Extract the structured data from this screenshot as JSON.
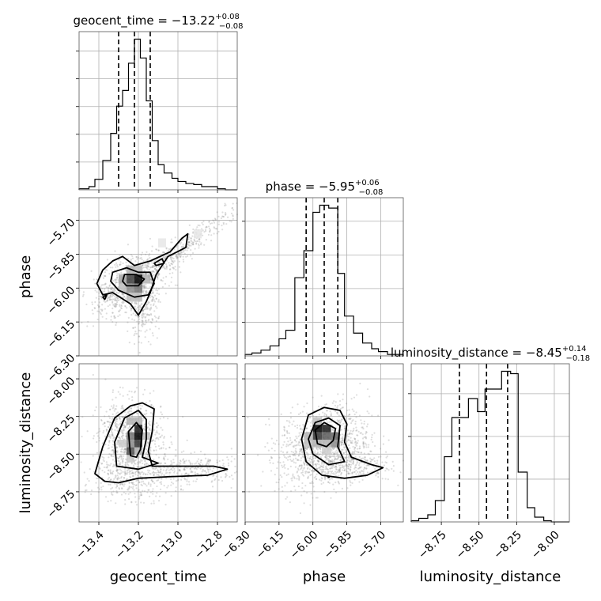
{
  "chart_data": {
    "type": "corner",
    "parameters": [
      {
        "name": "geocent_time",
        "label": "geocent_time",
        "title_prefix": "geocent_time = ",
        "median": "−13.22",
        "plus": "+0.08",
        "minus": "−0.08",
        "quantiles": [
          -13.3,
          -13.22,
          -13.14
        ],
        "range": [
          -13.5,
          -12.7
        ],
        "ticks": [
          -13.4,
          -13.2,
          -13.0,
          -12.8
        ],
        "tick_labels": [
          "−13.4",
          "−13.2",
          "−13.0",
          "−12.8"
        ],
        "hist": {
          "edges": [
            -13.5,
            -13.45,
            -13.42,
            -13.38,
            -13.34,
            -13.31,
            -13.28,
            -13.25,
            -13.22,
            -13.19,
            -13.16,
            -13.13,
            -13.1,
            -13.07,
            -13.03,
            -13.0,
            -12.96,
            -12.92,
            -12.88,
            -12.84,
            -12.8,
            -12.76,
            -12.7
          ],
          "counts": [
            1,
            3,
            10,
            28,
            54,
            80,
            95,
            121,
            144,
            126,
            85,
            47,
            24,
            16,
            11,
            8,
            6,
            5,
            3,
            3,
            1,
            0
          ]
        }
      },
      {
        "name": "phase",
        "label": "phase",
        "title_prefix": "phase = ",
        "median": "−5.95",
        "plus": "+0.06",
        "minus": "−0.08",
        "quantiles": [
          -6.03,
          -5.95,
          -5.89
        ],
        "range": [
          -6.3,
          -5.6
        ],
        "ticks": [
          -6.3,
          -6.15,
          -6.0,
          -5.85,
          -5.7
        ],
        "tick_labels": [
          "−6.30",
          "−6.15",
          "−6.00",
          "−5.85",
          "−5.70"
        ],
        "hist": {
          "edges": [
            -6.3,
            -6.27,
            -6.23,
            -6.19,
            -6.15,
            -6.12,
            -6.08,
            -6.04,
            -6.0,
            -5.97,
            -5.93,
            -5.89,
            -5.86,
            -5.82,
            -5.78,
            -5.74,
            -5.71,
            -5.67,
            -5.63,
            -5.6
          ],
          "counts": [
            1,
            2,
            4,
            7,
            12,
            18,
            55,
            74,
            101,
            106,
            104,
            58,
            28,
            16,
            9,
            5,
            3,
            1,
            1
          ]
        }
      },
      {
        "name": "luminosity_distance",
        "label": "luminosity_distance",
        "title_prefix": "luminosity_distance = ",
        "median": "−8.45",
        "plus": "+0.14",
        "minus": "−0.18",
        "quantiles": [
          -8.63,
          -8.45,
          -8.31
        ],
        "range": [
          -8.95,
          -7.9
        ],
        "ticks": [
          -8.75,
          -8.5,
          -8.25,
          -8.0
        ],
        "tick_labels": [
          "−8.75",
          "−8.50",
          "−8.25",
          "−8.00"
        ],
        "hist": {
          "edges": [
            -8.95,
            -8.9,
            -8.84,
            -8.79,
            -8.73,
            -8.68,
            -8.62,
            -8.57,
            -8.51,
            -8.46,
            -8.4,
            -8.35,
            -8.29,
            -8.24,
            -8.18,
            -8.13,
            -8.07,
            -8.02,
            -7.96,
            -7.9
          ],
          "counts": [
            1,
            3,
            6,
            18,
            55,
            88,
            88,
            104,
            93,
            112,
            112,
            127,
            125,
            42,
            12,
            4,
            1,
            0,
            0
          ]
        }
      }
    ],
    "pairs": [
      {
        "x": "geocent_time",
        "y": "phase",
        "cloud": [
          {
            "cx": -13.22,
            "cy": -5.97,
            "sx": 0.08,
            "sy": 0.06,
            "rho": 0.3,
            "n": 600
          },
          {
            "cx": -13.18,
            "cy": -6.12,
            "sx": 0.04,
            "sy": 0.05,
            "rho": 0.0,
            "n": 180
          },
          {
            "cx": -13.0,
            "cy": -5.84,
            "sx": 0.18,
            "sy": 0.12,
            "rho": 0.97,
            "n": 420
          },
          {
            "cx": -13.35,
            "cy": -6.05,
            "sx": 0.05,
            "sy": 0.05,
            "rho": 0.0,
            "n": 120
          }
        ],
        "cells": [
          {
            "x": -13.24,
            "y": -5.96,
            "v": 0.75
          },
          {
            "x": -13.2,
            "y": -5.96,
            "v": 1.0
          },
          {
            "x": -13.24,
            "y": -6.0,
            "v": 0.45
          },
          {
            "x": -13.2,
            "y": -6.0,
            "v": 0.55
          },
          {
            "x": -13.28,
            "y": -5.96,
            "v": 0.35
          },
          {
            "x": -13.28,
            "y": -6.0,
            "v": 0.25
          },
          {
            "x": -13.16,
            "y": -5.96,
            "v": 0.3
          },
          {
            "x": -13.24,
            "y": -6.04,
            "v": 0.25
          },
          {
            "x": -13.2,
            "y": -6.04,
            "v": 0.25
          },
          {
            "x": -13.24,
            "y": -5.92,
            "v": 0.3
          },
          {
            "x": -13.2,
            "y": -5.92,
            "v": 0.25
          },
          {
            "x": -13.08,
            "y": -5.8,
            "v": 0.1
          },
          {
            "x": -12.9,
            "y": -5.76,
            "v": 0.1
          }
        ],
        "contours": [
          [
            [
              -13.41,
              -5.98
            ],
            [
              -13.38,
              -5.92
            ],
            [
              -13.33,
              -5.88
            ],
            [
              -13.28,
              -5.86
            ],
            [
              -13.22,
              -5.9
            ],
            [
              -13.14,
              -5.88
            ],
            [
              -13.04,
              -5.84
            ],
            [
              -12.98,
              -5.78
            ],
            [
              -12.95,
              -5.76
            ],
            [
              -12.96,
              -5.82
            ],
            [
              -13.05,
              -5.86
            ],
            [
              -13.11,
              -5.94
            ],
            [
              -13.14,
              -6.02
            ],
            [
              -13.16,
              -6.06
            ],
            [
              -13.2,
              -6.12
            ],
            [
              -13.24,
              -6.07
            ],
            [
              -13.33,
              -6.02
            ],
            [
              -13.38,
              -6.03
            ],
            [
              -13.41,
              -5.98
            ]
          ],
          [
            [
              -13.33,
              -5.93
            ],
            [
              -13.26,
              -5.91
            ],
            [
              -13.2,
              -5.93
            ],
            [
              -13.14,
              -5.93
            ],
            [
              -13.12,
              -5.98
            ],
            [
              -13.15,
              -6.03
            ],
            [
              -13.22,
              -6.04
            ],
            [
              -13.3,
              -6.01
            ],
            [
              -13.34,
              -5.97
            ],
            [
              -13.33,
              -5.93
            ]
          ],
          [
            [
              -13.27,
              -5.94
            ],
            [
              -13.21,
              -5.94
            ],
            [
              -13.17,
              -5.96
            ],
            [
              -13.2,
              -5.99
            ],
            [
              -13.26,
              -5.99
            ],
            [
              -13.28,
              -5.97
            ],
            [
              -13.27,
              -5.94
            ]
          ],
          [
            [
              -13.12,
              -5.89
            ],
            [
              -13.08,
              -5.87
            ],
            [
              -13.07,
              -5.89
            ],
            [
              -13.11,
              -5.9
            ],
            [
              -13.12,
              -5.89
            ]
          ],
          [
            [
              -13.38,
              -6.04
            ],
            [
              -13.36,
              -6.03
            ],
            [
              -13.37,
              -6.05
            ],
            [
              -13.38,
              -6.04
            ]
          ]
        ]
      },
      {
        "x": "geocent_time",
        "y": "luminosity_distance",
        "cloud": [
          {
            "cx": -13.24,
            "cy": -8.42,
            "sx": 0.08,
            "sy": 0.14,
            "rho": 0.0,
            "n": 900
          },
          {
            "cx": -12.95,
            "cy": -8.6,
            "sx": 0.15,
            "sy": 0.05,
            "rho": 0.0,
            "n": 300
          },
          {
            "cx": -13.25,
            "cy": -8.7,
            "sx": 0.12,
            "sy": 0.06,
            "rho": 0.0,
            "n": 200
          }
        ],
        "cells": [
          {
            "x": -13.2,
            "y": -8.33,
            "v": 0.9
          },
          {
            "x": -13.2,
            "y": -8.38,
            "v": 1.0
          },
          {
            "x": -13.2,
            "y": -8.43,
            "v": 0.8
          },
          {
            "x": -13.24,
            "y": -8.38,
            "v": 0.55
          },
          {
            "x": -13.24,
            "y": -8.43,
            "v": 0.45
          },
          {
            "x": -13.24,
            "y": -8.48,
            "v": 0.7
          },
          {
            "x": -13.2,
            "y": -8.48,
            "v": 0.3
          },
          {
            "x": -13.24,
            "y": -8.28,
            "v": 0.3
          },
          {
            "x": -13.2,
            "y": -8.28,
            "v": 0.3
          },
          {
            "x": -13.16,
            "y": -8.38,
            "v": 0.25
          },
          {
            "x": -13.28,
            "y": -8.43,
            "v": 0.2
          },
          {
            "x": -13.24,
            "y": -8.53,
            "v": 0.2
          }
        ],
        "contours": [
          [
            [
              -13.37,
              -8.68
            ],
            [
              -13.42,
              -8.63
            ],
            [
              -13.38,
              -8.45
            ],
            [
              -13.32,
              -8.26
            ],
            [
              -13.24,
              -8.18
            ],
            [
              -13.18,
              -8.16
            ],
            [
              -13.12,
              -8.2
            ],
            [
              -13.13,
              -8.35
            ],
            [
              -13.15,
              -8.48
            ],
            [
              -13.13,
              -8.58
            ],
            [
              -12.96,
              -8.58
            ],
            [
              -12.82,
              -8.58
            ],
            [
              -12.75,
              -8.6
            ],
            [
              -12.85,
              -8.64
            ],
            [
              -13.05,
              -8.65
            ],
            [
              -13.2,
              -8.66
            ],
            [
              -13.3,
              -8.69
            ],
            [
              -13.37,
              -8.68
            ]
          ],
          [
            [
              -13.31,
              -8.58
            ],
            [
              -13.32,
              -8.42
            ],
            [
              -13.27,
              -8.26
            ],
            [
              -13.2,
              -8.21
            ],
            [
              -13.16,
              -8.27
            ],
            [
              -13.16,
              -8.4
            ],
            [
              -13.18,
              -8.52
            ],
            [
              -13.1,
              -8.56
            ],
            [
              -13.2,
              -8.6
            ],
            [
              -13.31,
              -8.58
            ]
          ],
          [
            [
              -13.24,
              -8.51
            ],
            [
              -13.25,
              -8.35
            ],
            [
              -13.21,
              -8.29
            ],
            [
              -13.18,
              -8.34
            ],
            [
              -13.19,
              -8.47
            ],
            [
              -13.21,
              -8.52
            ],
            [
              -13.24,
              -8.51
            ]
          ]
        ]
      },
      {
        "x": "phase",
        "y": "luminosity_distance",
        "cloud": [
          {
            "cx": -5.95,
            "cy": -8.45,
            "sx": 0.1,
            "sy": 0.14,
            "rho": 0.2,
            "n": 1100
          },
          {
            "cx": -5.85,
            "cy": -8.58,
            "sx": 0.1,
            "sy": 0.05,
            "rho": 0.0,
            "n": 250
          }
        ],
        "cells": [
          {
            "x": -5.98,
            "y": -8.33,
            "v": 1.0
          },
          {
            "x": -5.94,
            "y": -8.33,
            "v": 0.9
          },
          {
            "x": -5.98,
            "y": -8.38,
            "v": 0.8
          },
          {
            "x": -5.94,
            "y": -8.38,
            "v": 0.65
          },
          {
            "x": -5.9,
            "y": -8.38,
            "v": 0.6
          },
          {
            "x": -5.9,
            "y": -8.43,
            "v": 0.45
          },
          {
            "x": -6.02,
            "y": -8.38,
            "v": 0.3
          },
          {
            "x": -5.98,
            "y": -8.43,
            "v": 0.3
          },
          {
            "x": -5.94,
            "y": -8.43,
            "v": 0.3
          },
          {
            "x": -5.98,
            "y": -8.28,
            "v": 0.25
          },
          {
            "x": -6.02,
            "y": -8.43,
            "v": 0.25
          },
          {
            "x": -5.94,
            "y": -8.48,
            "v": 0.2
          }
        ],
        "contours": [
          [
            [
              -6.03,
              -8.55
            ],
            [
              -6.05,
              -8.4
            ],
            [
              -6.02,
              -8.24
            ],
            [
              -5.95,
              -8.19
            ],
            [
              -5.88,
              -8.21
            ],
            [
              -5.85,
              -8.3
            ],
            [
              -5.86,
              -8.42
            ],
            [
              -5.83,
              -8.52
            ],
            [
              -5.74,
              -8.57
            ],
            [
              -5.69,
              -8.59
            ],
            [
              -5.76,
              -8.64
            ],
            [
              -5.86,
              -8.66
            ],
            [
              -5.96,
              -8.64
            ],
            [
              -6.03,
              -8.55
            ]
          ],
          [
            [
              -6.0,
              -8.5
            ],
            [
              -6.02,
              -8.4
            ],
            [
              -5.99,
              -8.29
            ],
            [
              -5.93,
              -8.26
            ],
            [
              -5.88,
              -8.31
            ],
            [
              -5.89,
              -8.45
            ],
            [
              -5.86,
              -8.55
            ],
            [
              -5.93,
              -8.57
            ],
            [
              -6.0,
              -8.5
            ]
          ],
          [
            [
              -5.98,
              -8.43
            ],
            [
              -5.99,
              -8.34
            ],
            [
              -5.95,
              -8.29
            ],
            [
              -5.9,
              -8.33
            ],
            [
              -5.91,
              -8.41
            ],
            [
              -5.94,
              -8.45
            ],
            [
              -5.98,
              -8.43
            ]
          ]
        ],
        "marker": {
          "x": -5.93,
          "y": -8.65
        }
      }
    ]
  }
}
